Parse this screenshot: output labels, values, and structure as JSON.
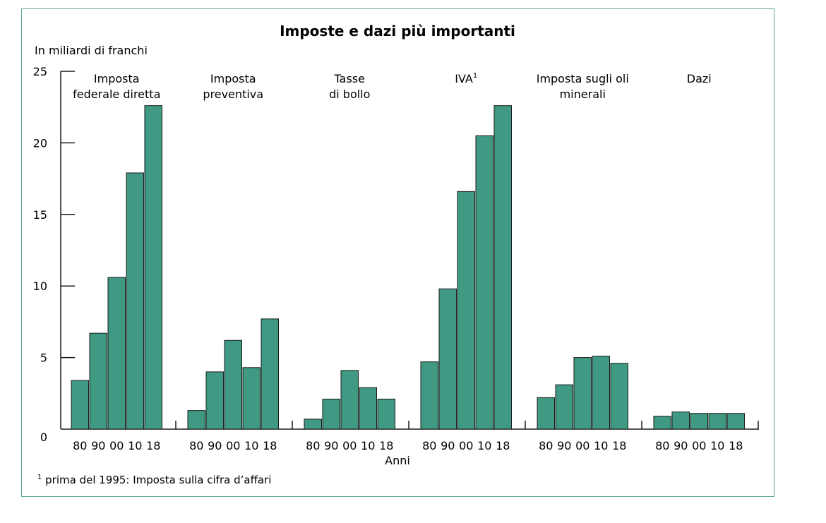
{
  "chart_data": {
    "type": "bar",
    "title": "Imposte e dazi più importanti",
    "unit_label": "In miliardi di franchi",
    "xlabel": "Anni",
    "ylim": [
      0,
      25
    ],
    "yticks": [
      "0",
      "5",
      "10",
      "15",
      "20",
      "25"
    ],
    "bar_color": "#3f9983",
    "bar_edge_color": "#1a1a1a",
    "categories": [
      "80",
      "90",
      "00",
      "10",
      "18"
    ],
    "groups": [
      {
        "label_lines": [
          "Imposta",
          "federale diretta"
        ],
        "sup": "",
        "values": [
          3.4,
          6.7,
          10.6,
          17.9,
          22.6
        ]
      },
      {
        "label_lines": [
          "Imposta",
          "preventiva"
        ],
        "sup": "",
        "values": [
          1.3,
          4.0,
          6.2,
          4.3,
          7.7
        ]
      },
      {
        "label_lines": [
          "Tasse",
          "di bollo"
        ],
        "sup": "",
        "values": [
          0.7,
          2.1,
          4.1,
          2.9,
          2.1
        ]
      },
      {
        "label_lines": [
          "IVA"
        ],
        "sup": "1",
        "values": [
          4.7,
          9.8,
          16.6,
          20.5,
          22.6
        ]
      },
      {
        "label_lines": [
          "Imposta sugli oli",
          "minerali"
        ],
        "sup": "",
        "values": [
          2.2,
          3.1,
          5.0,
          5.1,
          4.6
        ]
      },
      {
        "label_lines": [
          "Dazi"
        ],
        "sup": "",
        "values": [
          0.9,
          1.2,
          1.1,
          1.1,
          1.1
        ]
      }
    ],
    "footnote": {
      "mark": "1",
      "text": " prima del 1995: Imposta sulla cifra d’affari"
    }
  }
}
